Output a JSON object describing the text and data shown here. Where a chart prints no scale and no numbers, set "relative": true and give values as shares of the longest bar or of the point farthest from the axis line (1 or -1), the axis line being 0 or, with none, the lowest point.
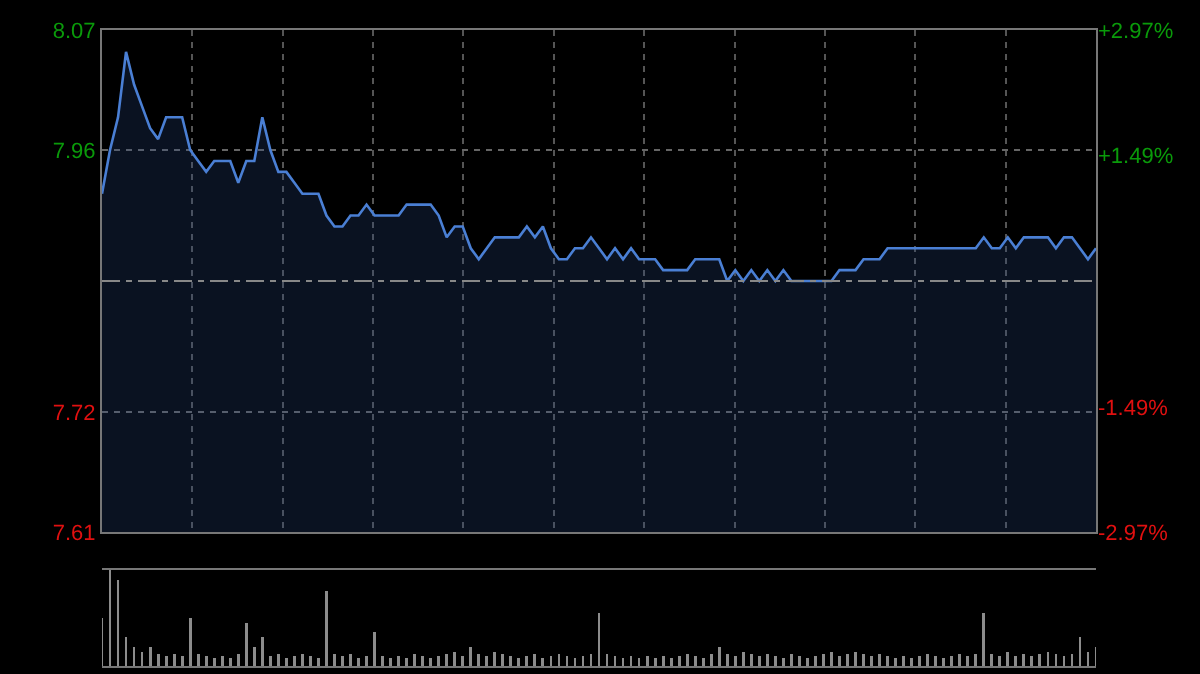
{
  "chart_data": [
    {
      "type": "area",
      "categories": [
        null,
        null,
        null,
        null,
        null,
        null,
        null,
        null,
        null,
        null,
        null,
        null,
        null,
        null,
        null,
        null,
        null,
        null,
        null,
        null,
        null,
        null,
        null,
        null,
        null,
        null,
        null,
        null,
        null,
        null,
        null,
        null,
        null,
        null,
        null,
        null,
        null,
        null,
        null,
        null,
        null,
        null,
        null,
        null,
        null,
        null,
        null,
        null,
        null,
        null,
        null,
        null,
        null,
        null,
        null,
        null,
        null,
        null,
        null,
        null,
        null,
        null,
        null,
        null,
        null,
        null,
        null,
        null,
        null,
        null,
        null,
        null,
        null,
        null,
        null,
        null,
        null,
        null,
        null,
        null,
        null,
        null,
        null,
        null,
        null,
        null,
        null,
        null,
        null,
        null,
        null,
        null,
        null,
        null,
        null,
        null,
        null,
        null,
        null,
        null,
        null,
        null,
        null,
        null,
        null,
        null,
        null,
        null,
        null,
        null,
        null,
        null,
        null,
        null,
        null,
        null,
        null,
        null,
        null,
        null,
        null,
        null,
        null,
        null,
        null
      ],
      "series": [
        {
          "color": "#4a7fd4",
          "values": [
            7.92,
            7.96,
            7.99,
            8.05,
            8.02,
            8.0,
            7.98,
            7.97,
            7.99,
            7.99,
            7.99,
            7.96,
            7.95,
            7.94,
            7.95,
            7.95,
            7.95,
            7.93,
            7.95,
            7.95,
            7.99,
            7.96,
            7.94,
            7.94,
            7.93,
            7.92,
            7.92,
            7.92,
            7.9,
            7.89,
            7.89,
            7.9,
            7.9,
            7.91,
            7.9,
            7.9,
            7.9,
            7.9,
            7.91,
            7.91,
            7.91,
            7.91,
            7.9,
            7.88,
            7.89,
            7.89,
            7.87,
            7.86,
            7.87,
            7.88,
            7.88,
            7.88,
            7.88,
            7.89,
            7.88,
            7.89,
            7.87,
            7.86,
            7.86,
            7.87,
            7.87,
            7.88,
            7.87,
            7.86,
            7.87,
            7.86,
            7.87,
            7.86,
            7.86,
            7.86,
            7.85,
            7.85,
            7.85,
            7.85,
            7.86,
            7.86,
            7.86,
            7.86,
            7.84,
            7.85,
            7.84,
            7.85,
            7.84,
            7.85,
            7.84,
            7.85,
            7.84,
            7.84,
            7.84,
            7.84,
            7.84,
            7.84,
            7.85,
            7.85,
            7.85,
            7.86,
            7.86,
            7.86,
            7.87,
            7.87,
            7.87,
            7.87,
            7.87,
            7.87,
            7.87,
            7.87,
            7.87,
            7.87,
            7.87,
            7.87,
            7.88,
            7.87,
            7.87,
            7.88,
            7.87,
            7.88,
            7.88,
            7.88,
            7.88,
            7.87,
            7.88,
            7.88,
            7.87,
            7.86,
            7.87
          ]
        }
      ],
      "ylim": [
        7.61,
        8.07
      ],
      "yticks": [
        7.61,
        7.72,
        7.96,
        8.07
      ],
      "y2lim": [
        -2.97,
        2.97
      ],
      "y2ticks": [
        {
          "value": 2.97,
          "label": "+2.97%"
        },
        {
          "value": 1.49,
          "label": "+1.49%"
        },
        {
          "value": -1.49,
          "label": "-1.49%"
        },
        {
          "value": -2.97,
          "label": "-2.97%"
        }
      ],
      "ref_lines": [
        {
          "axis": "y",
          "value": 7.84,
          "color": "#888888",
          "line_style": "dashed"
        }
      ],
      "grid": true,
      "tick_labels": "y"
    },
    {
      "type": "bar",
      "relative": true,
      "categories": [
        null,
        null,
        null,
        null,
        null,
        null,
        null,
        null,
        null,
        null,
        null,
        null,
        null,
        null,
        null,
        null,
        null,
        null,
        null,
        null,
        null,
        null,
        null,
        null,
        null,
        null,
        null,
        null,
        null,
        null,
        null,
        null,
        null,
        null,
        null,
        null,
        null,
        null,
        null,
        null,
        null,
        null,
        null,
        null,
        null,
        null,
        null,
        null,
        null,
        null,
        null,
        null,
        null,
        null,
        null,
        null,
        null,
        null,
        null,
        null,
        null,
        null,
        null,
        null,
        null,
        null,
        null,
        null,
        null,
        null,
        null,
        null,
        null,
        null,
        null,
        null,
        null,
        null,
        null,
        null,
        null,
        null,
        null,
        null,
        null,
        null,
        null,
        null,
        null,
        null,
        null,
        null,
        null,
        null,
        null,
        null,
        null,
        null,
        null,
        null,
        null,
        null,
        null,
        null,
        null,
        null,
        null,
        null,
        null,
        null,
        null,
        null,
        null,
        null,
        null,
        null,
        null,
        null,
        null,
        null,
        null,
        null,
        null,
        null,
        null
      ],
      "series": [
        {
          "color": "#8c8c8c",
          "values": [
            0.5,
            1,
            0.9,
            0.3,
            0.2,
            0.15,
            0.2,
            0.12,
            0.1,
            0.12,
            0.1,
            0.5,
            0.12,
            0.1,
            0.08,
            0.1,
            0.08,
            0.12,
            0.45,
            0.2,
            0.3,
            0.1,
            0.12,
            0.08,
            0.1,
            0.12,
            0.1,
            0.08,
            0.78,
            0.12,
            0.1,
            0.12,
            0.08,
            0.1,
            0.35,
            0.1,
            0.08,
            0.1,
            0.08,
            0.12,
            0.1,
            0.08,
            0.1,
            0.12,
            0.15,
            0.1,
            0.2,
            0.12,
            0.1,
            0.15,
            0.12,
            0.1,
            0.08,
            0.1,
            0.12,
            0.08,
            0.1,
            0.12,
            0.1,
            0.08,
            0.1,
            0.12,
            0.55,
            0.12,
            0.1,
            0.08,
            0.1,
            0.08,
            0.1,
            0.08,
            0.1,
            0.08,
            0.1,
            0.12,
            0.1,
            0.08,
            0.12,
            0.2,
            0.12,
            0.1,
            0.15,
            0.12,
            0.1,
            0.12,
            0.1,
            0.08,
            0.12,
            0.1,
            0.08,
            0.1,
            0.12,
            0.15,
            0.1,
            0.12,
            0.15,
            0.12,
            0.1,
            0.12,
            0.1,
            0.08,
            0.1,
            0.08,
            0.1,
            0.12,
            0.1,
            0.08,
            0.1,
            0.12,
            0.1,
            0.12,
            0.55,
            0.12,
            0.1,
            0.15,
            0.1,
            0.12,
            0.1,
            0.12,
            0.15,
            0.12,
            0.1,
            0.12,
            0.3,
            0.15,
            0.2
          ]
        }
      ],
      "grid": false,
      "tick_labels": false
    }
  ]
}
